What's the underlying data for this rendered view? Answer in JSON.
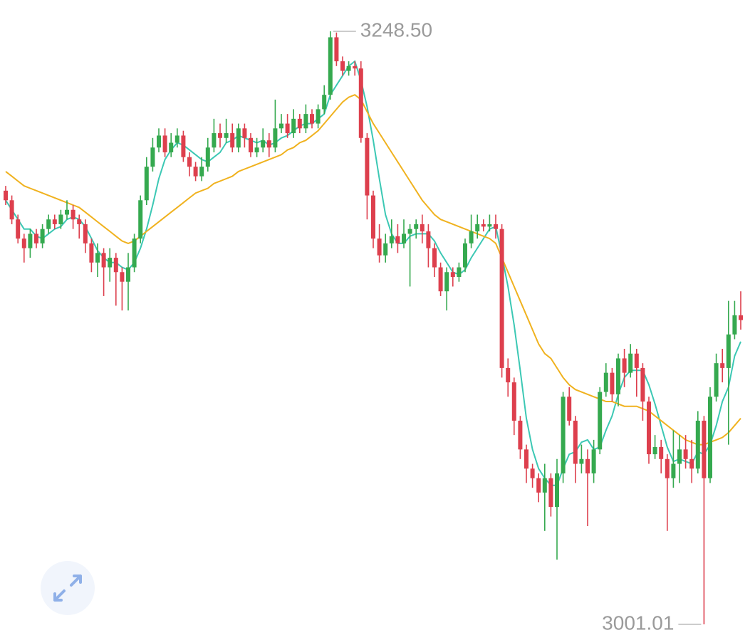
{
  "chart_data": {
    "type": "candlestick",
    "up_color": "#35a94f",
    "down_color": "#dd3f4d",
    "open": [
      3182,
      3178,
      3170,
      3162,
      3158,
      3164,
      3160,
      3166,
      3170,
      3168,
      3172,
      3174,
      3170,
      3168,
      3160,
      3152,
      3156,
      3150,
      3154,
      3148,
      3144,
      3150,
      3162,
      3178,
      3192,
      3200,
      3205,
      3198,
      3202,
      3205,
      3196,
      3192,
      3188,
      3192,
      3200,
      3206,
      3204,
      3206,
      3200,
      3208,
      3204,
      3198,
      3200,
      3203,
      3200,
      3208,
      3210,
      3206,
      3212,
      3208,
      3214,
      3210,
      3216,
      3222,
      3246,
      3236,
      3232,
      3234,
      3233,
      3204,
      3180,
      3162,
      3155,
      3160,
      3163,
      3160,
      3164,
      3166,
      3168,
      3165,
      3158,
      3150,
      3140,
      3148,
      3146,
      3150,
      3160,
      3165,
      3168,
      3167,
      3168,
      3166,
      3108,
      3102,
      3086,
      3074,
      3066,
      3062,
      3056,
      3062,
      3050,
      3064,
      3096,
      3086,
      3068,
      3070,
      3064,
      3074,
      3098,
      3106,
      3097,
      3112,
      3106,
      3114,
      3108,
      3094,
      3072,
      3075,
      3070,
      3062,
      3068,
      3074,
      3070,
      3066,
      3086,
      3062,
      3096,
      3110,
      3108,
      3122,
      3130
    ],
    "high": [
      3184,
      3180,
      3172,
      3164,
      3166,
      3166,
      3168,
      3172,
      3172,
      3174,
      3178,
      3176,
      3172,
      3170,
      3162,
      3160,
      3158,
      3158,
      3156,
      3150,
      3156,
      3164,
      3180,
      3196,
      3204,
      3208,
      3208,
      3206,
      3208,
      3207,
      3198,
      3194,
      3196,
      3204,
      3212,
      3210,
      3212,
      3210,
      3210,
      3210,
      3206,
      3204,
      3208,
      3206,
      3220,
      3214,
      3214,
      3216,
      3214,
      3218,
      3216,
      3218,
      3226,
      3248.5,
      3248,
      3238,
      3236,
      3236,
      3236,
      3206,
      3182,
      3168,
      3164,
      3170,
      3168,
      3170,
      3168,
      3170,
      3172,
      3168,
      3160,
      3152,
      3150,
      3150,
      3152,
      3162,
      3172,
      3172,
      3170,
      3172,
      3172,
      3168,
      3112,
      3104,
      3088,
      3076,
      3068,
      3064,
      3068,
      3064,
      3070,
      3098,
      3100,
      3088,
      3076,
      3074,
      3078,
      3100,
      3110,
      3108,
      3114,
      3116,
      3118,
      3116,
      3110,
      3096,
      3080,
      3078,
      3072,
      3082,
      3080,
      3080,
      3078,
      3090,
      3088,
      3100,
      3114,
      3116,
      3136,
      3136,
      3140
    ],
    "low": [
      3176,
      3168,
      3160,
      3152,
      3154,
      3158,
      3158,
      3164,
      3166,
      3166,
      3170,
      3166,
      3162,
      3156,
      3148,
      3146,
      3138,
      3144,
      3134,
      3132,
      3132,
      3148,
      3160,
      3176,
      3190,
      3198,
      3196,
      3196,
      3200,
      3194,
      3188,
      3186,
      3186,
      3190,
      3198,
      3200,
      3202,
      3198,
      3198,
      3200,
      3196,
      3196,
      3198,
      3196,
      3198,
      3206,
      3204,
      3204,
      3206,
      3206,
      3208,
      3208,
      3214,
      3220,
      3234,
      3230,
      3230,
      3230,
      3202,
      3170,
      3158,
      3152,
      3152,
      3158,
      3156,
      3158,
      3142,
      3162,
      3160,
      3150,
      3146,
      3138,
      3132,
      3142,
      3144,
      3148,
      3158,
      3162,
      3165,
      3165,
      3162,
      3104,
      3096,
      3080,
      3070,
      3060,
      3058,
      3052,
      3040,
      3046,
      3028,
      3060,
      3084,
      3060,
      3064,
      3042,
      3060,
      3072,
      3096,
      3094,
      3092,
      3100,
      3104,
      3096,
      3086,
      3068,
      3070,
      3064,
      3040,
      3058,
      3060,
      3066,
      3060,
      3064,
      3001.01,
      3060,
      3094,
      3102,
      3076,
      3120,
      3124
    ],
    "close": [
      3178,
      3170,
      3162,
      3158,
      3164,
      3160,
      3166,
      3170,
      3168,
      3172,
      3174,
      3170,
      3168,
      3160,
      3152,
      3156,
      3150,
      3154,
      3148,
      3144,
      3150,
      3162,
      3178,
      3192,
      3200,
      3205,
      3198,
      3202,
      3205,
      3196,
      3192,
      3188,
      3192,
      3200,
      3206,
      3204,
      3206,
      3200,
      3208,
      3204,
      3198,
      3200,
      3203,
      3200,
      3208,
      3210,
      3206,
      3212,
      3208,
      3214,
      3210,
      3216,
      3222,
      3246,
      3236,
      3232,
      3234,
      3233,
      3204,
      3180,
      3162,
      3155,
      3160,
      3163,
      3160,
      3164,
      3166,
      3168,
      3165,
      3158,
      3150,
      3140,
      3148,
      3146,
      3150,
      3160,
      3165,
      3168,
      3167,
      3168,
      3166,
      3108,
      3102,
      3086,
      3074,
      3066,
      3062,
      3056,
      3062,
      3050,
      3064,
      3096,
      3086,
      3068,
      3070,
      3064,
      3074,
      3098,
      3106,
      3097,
      3112,
      3106,
      3114,
      3108,
      3094,
      3072,
      3075,
      3070,
      3062,
      3068,
      3074,
      3070,
      3066,
      3086,
      3062,
      3096,
      3110,
      3108,
      3122,
      3130,
      3128
    ],
    "series": [
      {
        "color": "#3cc8b4",
        "values": [
          3178,
          3174,
          3170,
          3166,
          3166,
          3163,
          3162,
          3164,
          3166,
          3167,
          3170,
          3171,
          3170,
          3167,
          3162,
          3157,
          3154,
          3152,
          3152,
          3150,
          3149,
          3152,
          3158,
          3166,
          3176,
          3187,
          3195,
          3199,
          3202,
          3201,
          3199,
          3197,
          3195,
          3194,
          3196,
          3198,
          3202,
          3203,
          3205,
          3204,
          3203,
          3202,
          3203,
          3201,
          3202,
          3204,
          3205,
          3207,
          3209,
          3210,
          3210,
          3212,
          3214,
          3222,
          3226,
          3230,
          3234,
          3236,
          3228,
          3217,
          3203,
          3187,
          3172,
          3164,
          3160,
          3160,
          3163,
          3164,
          3164,
          3164,
          3161,
          3156,
          3152,
          3148,
          3147,
          3149,
          3154,
          3158,
          3162,
          3166,
          3167,
          3155,
          3142,
          3126,
          3107,
          3087,
          3074,
          3066,
          3062,
          3059,
          3059,
          3066,
          3072,
          3073,
          3077,
          3078,
          3074,
          3075,
          3082,
          3088,
          3097,
          3104,
          3107,
          3107,
          3107,
          3101,
          3093,
          3084,
          3075,
          3069,
          3070,
          3069,
          3068,
          3073,
          3072,
          3076,
          3084,
          3094,
          3100,
          3113,
          3119
        ]
      },
      {
        "color": "#f0b21f",
        "values": [
          3190,
          3188,
          3186,
          3184,
          3183,
          3182,
          3181,
          3180,
          3179,
          3178,
          3177,
          3176,
          3175,
          3173,
          3171,
          3169,
          3167,
          3165,
          3163,
          3161,
          3160,
          3161,
          3163,
          3165,
          3167,
          3169,
          3171,
          3173,
          3175,
          3177,
          3179,
          3181,
          3182,
          3183,
          3185,
          3186,
          3187,
          3188,
          3190,
          3191,
          3192,
          3193,
          3194,
          3195,
          3196,
          3197,
          3199,
          3200,
          3202,
          3203,
          3205,
          3207,
          3210,
          3213,
          3216,
          3219,
          3221,
          3222,
          3220,
          3215,
          3210,
          3206,
          3202,
          3198,
          3194,
          3190,
          3186,
          3182,
          3178,
          3175,
          3172,
          3170,
          3169,
          3168,
          3167,
          3166,
          3165,
          3164,
          3163,
          3162,
          3160,
          3154,
          3148,
          3142,
          3136,
          3130,
          3124,
          3118,
          3114,
          3112,
          3108,
          3104,
          3101,
          3099,
          3098,
          3097,
          3096,
          3095,
          3094,
          3094,
          3093,
          3092,
          3092,
          3092,
          3091,
          3090,
          3088,
          3086,
          3084,
          3082,
          3080,
          3078,
          3077,
          3076,
          3076,
          3077,
          3078,
          3079,
          3081,
          3084,
          3087
        ]
      }
    ],
    "annotations": [
      {
        "value": 3248.5,
        "label": "3248.50"
      },
      {
        "value": 3001.01,
        "label": "3001.01"
      }
    ]
  }
}
